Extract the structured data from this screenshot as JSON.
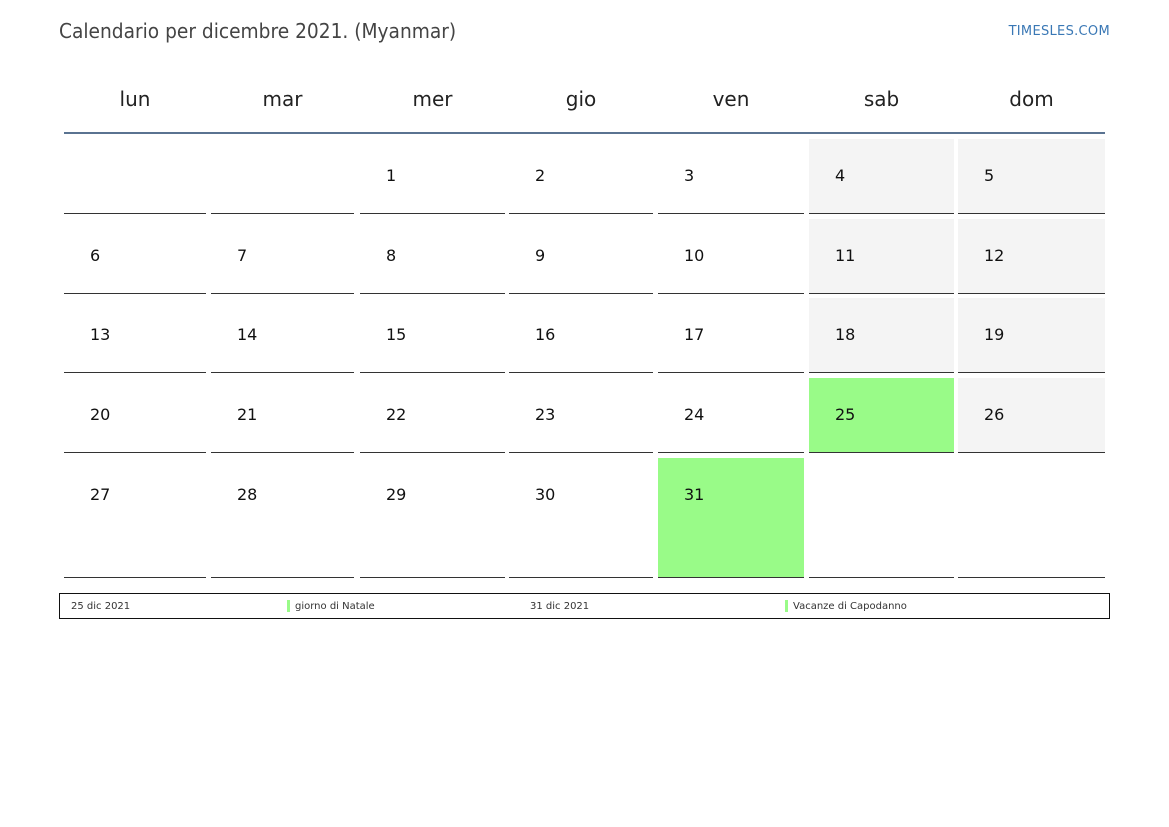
{
  "header": {
    "title": "Calendario per dicembre 2021. (Myanmar)",
    "site": "TIMESLES.COM"
  },
  "weekdays": [
    "lun",
    "mar",
    "mer",
    "gio",
    "ven",
    "sab",
    "dom"
  ],
  "colors": {
    "holiday": "#99fb88",
    "weekend": "#f4f4f4",
    "header_rule": "#5a7391",
    "link": "#3a78b5"
  },
  "weeks": [
    [
      {
        "day": "",
        "type": "normal"
      },
      {
        "day": "",
        "type": "normal"
      },
      {
        "day": "1",
        "type": "normal"
      },
      {
        "day": "2",
        "type": "normal"
      },
      {
        "day": "3",
        "type": "normal"
      },
      {
        "day": "4",
        "type": "weekend"
      },
      {
        "day": "5",
        "type": "weekend"
      }
    ],
    [
      {
        "day": "6",
        "type": "normal"
      },
      {
        "day": "7",
        "type": "normal"
      },
      {
        "day": "8",
        "type": "normal"
      },
      {
        "day": "9",
        "type": "normal"
      },
      {
        "day": "10",
        "type": "normal"
      },
      {
        "day": "11",
        "type": "weekend"
      },
      {
        "day": "12",
        "type": "weekend"
      }
    ],
    [
      {
        "day": "13",
        "type": "normal"
      },
      {
        "day": "14",
        "type": "normal"
      },
      {
        "day": "15",
        "type": "normal"
      },
      {
        "day": "16",
        "type": "normal"
      },
      {
        "day": "17",
        "type": "normal"
      },
      {
        "day": "18",
        "type": "weekend"
      },
      {
        "day": "19",
        "type": "weekend"
      }
    ],
    [
      {
        "day": "20",
        "type": "normal"
      },
      {
        "day": "21",
        "type": "normal"
      },
      {
        "day": "22",
        "type": "normal"
      },
      {
        "day": "23",
        "type": "normal"
      },
      {
        "day": "24",
        "type": "normal"
      },
      {
        "day": "25",
        "type": "holiday"
      },
      {
        "day": "26",
        "type": "weekend"
      }
    ],
    [
      {
        "day": "27",
        "type": "normal"
      },
      {
        "day": "28",
        "type": "normal"
      },
      {
        "day": "29",
        "type": "normal"
      },
      {
        "day": "30",
        "type": "normal"
      },
      {
        "day": "31",
        "type": "holiday"
      },
      {
        "day": "",
        "type": "normal"
      },
      {
        "day": "",
        "type": "normal"
      }
    ]
  ],
  "legend": [
    {
      "date": "25 dic 2021",
      "name": "giorno di Natale"
    },
    {
      "date": "31 dic 2021",
      "name": "Vacanze di Capodanno"
    }
  ]
}
